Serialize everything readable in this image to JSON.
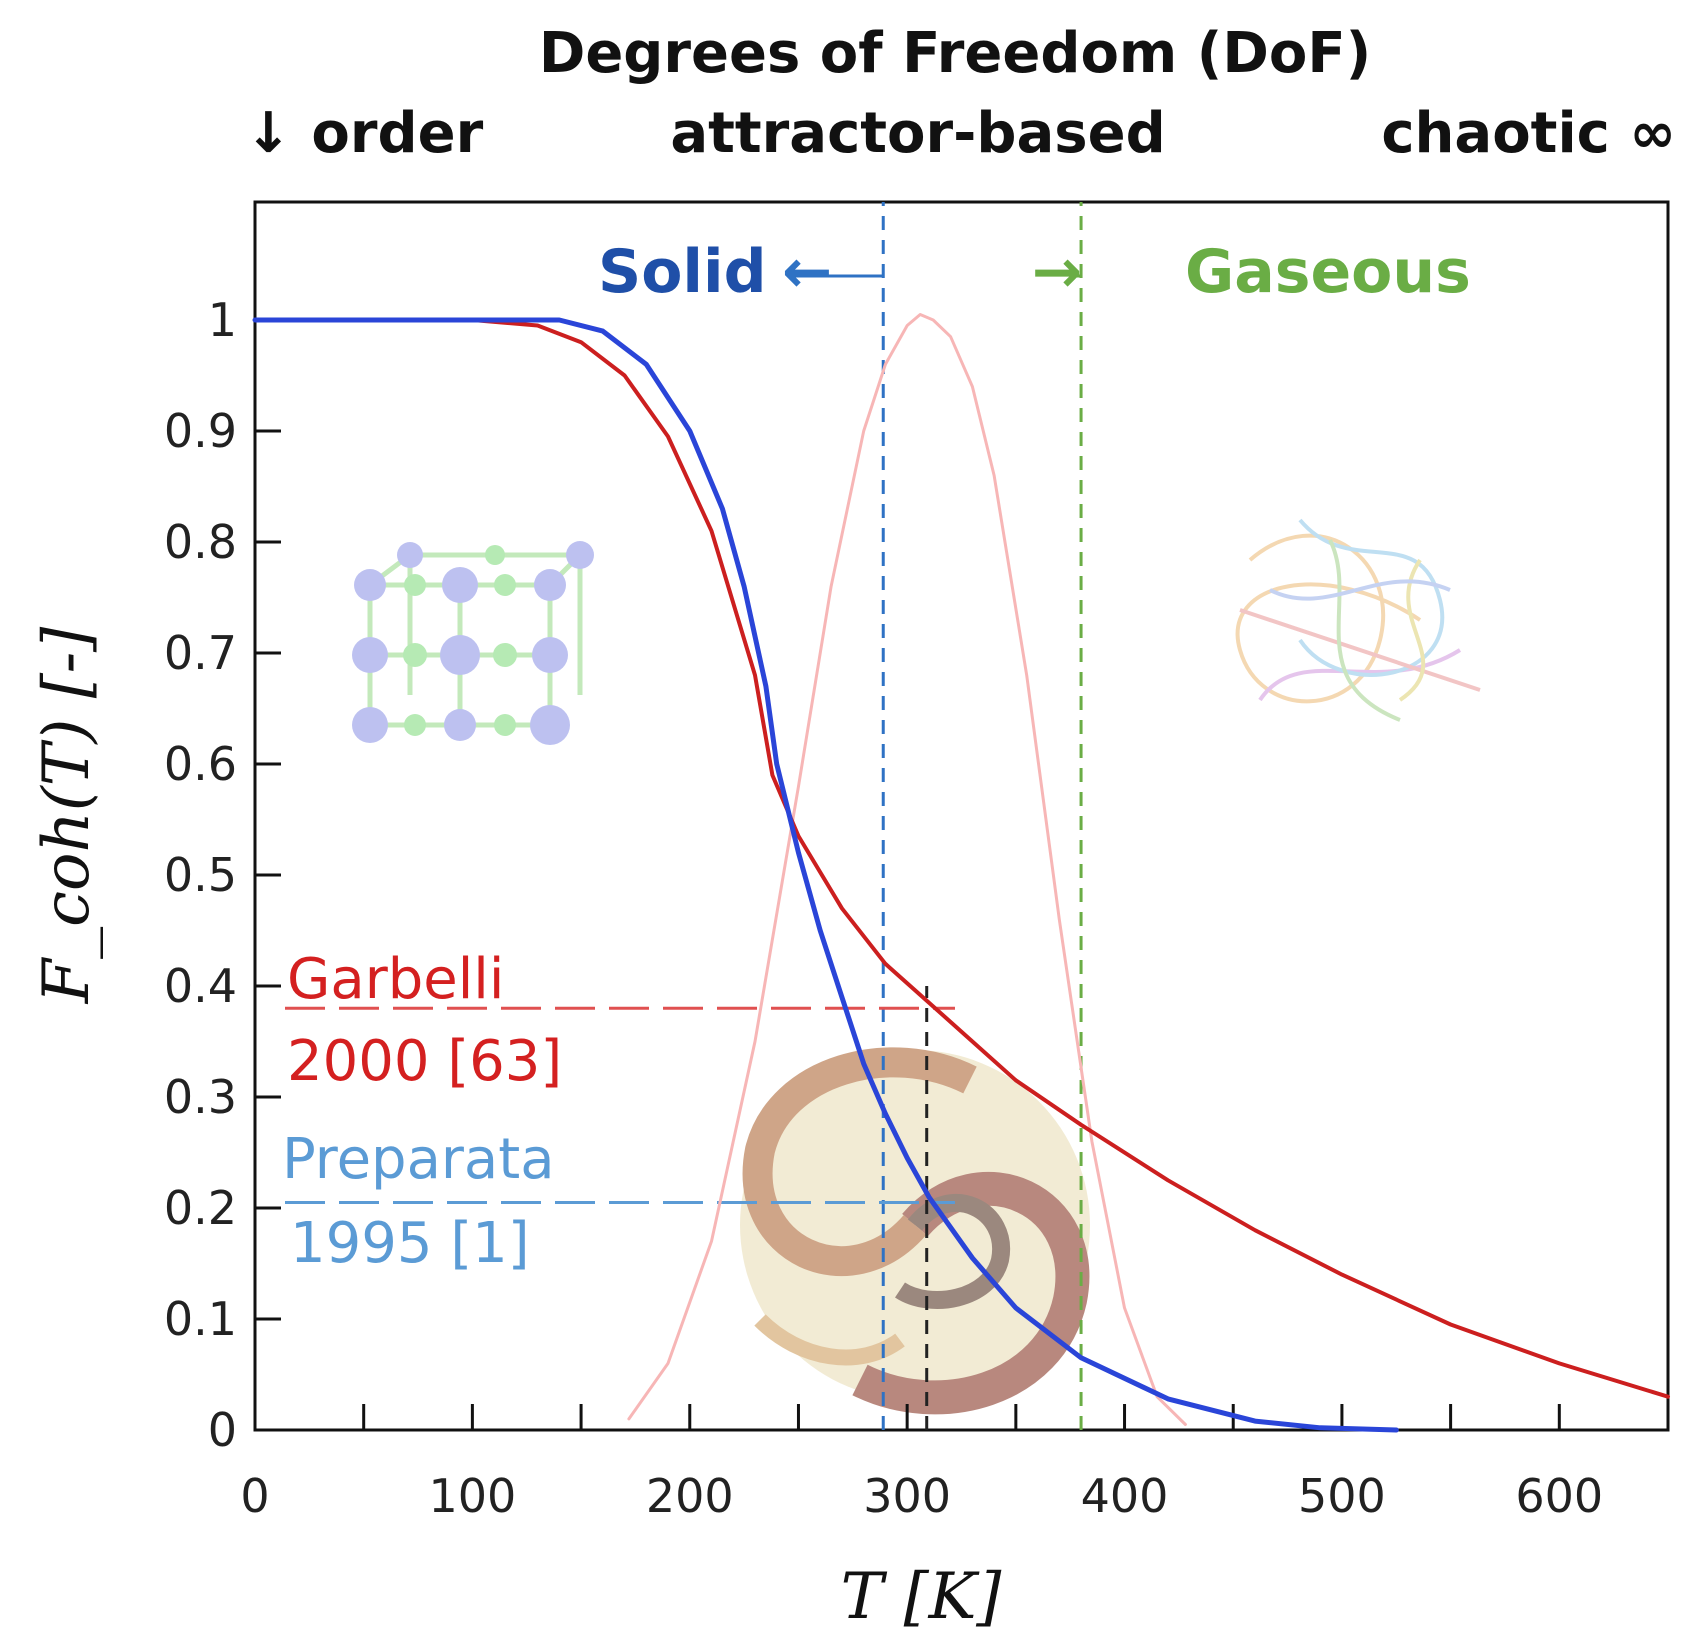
{
  "header": {
    "title": "Degrees of Freedom (DoF)",
    "left": "↓ order",
    "center": "attractor-based",
    "right": "chaotic ∞"
  },
  "annotations": {
    "solid": "Solid",
    "solid_arrow": "←",
    "gaseous": "Gaseous",
    "gaseous_arrow": "→",
    "garbelli": [
      "Garbelli",
      "2000 [63]"
    ],
    "preparata": [
      "Preparata",
      "1995 [1]"
    ]
  },
  "icons": [
    "crystal-lattice-icon",
    "chaotic-letters-icon",
    "spiral-swirl-icon"
  ],
  "chart_data": {
    "type": "line",
    "xlabel": "T [K]",
    "ylabel": "F_coh(T) [-]",
    "xlim": [
      0,
      650
    ],
    "ylim": [
      0,
      1.1
    ],
    "xticks": [
      0,
      100,
      200,
      300,
      400,
      500,
      600
    ],
    "yticks": [
      0,
      0.1,
      0.2,
      0.3,
      0.4,
      0.5,
      0.6,
      0.7,
      0.8,
      0.9,
      1
    ],
    "ytick_labels": [
      "0",
      "0.1",
      "0.2",
      "0.3",
      "0.4",
      "0.5",
      "0.6",
      "0.7",
      "0.8",
      "0.9",
      "1"
    ],
    "grid": false,
    "series": [
      {
        "color": "#cc1f1f",
        "x": [
          0,
          100,
          130,
          150,
          170,
          190,
          210,
          230,
          238,
          250,
          270,
          290,
          310,
          330,
          350,
          380,
          420,
          460,
          500,
          550,
          600,
          650
        ],
        "y": [
          1.0,
          1.0,
          0.995,
          0.98,
          0.95,
          0.895,
          0.81,
          0.68,
          0.59,
          0.535,
          0.47,
          0.42,
          0.385,
          0.35,
          0.315,
          0.275,
          0.225,
          0.18,
          0.14,
          0.095,
          0.06,
          0.03
        ]
      },
      {
        "color": "#2a45d8",
        "x": [
          0,
          140,
          160,
          180,
          200,
          215,
          225,
          235,
          240,
          250,
          260,
          270,
          280,
          290,
          300,
          310,
          330,
          350,
          380,
          420,
          460,
          490,
          525
        ],
        "y": [
          1.0,
          1.0,
          0.99,
          0.96,
          0.9,
          0.83,
          0.76,
          0.67,
          0.6,
          0.52,
          0.45,
          0.39,
          0.33,
          0.285,
          0.245,
          0.21,
          0.155,
          0.11,
          0.065,
          0.028,
          0.008,
          0.002,
          0.0
        ]
      },
      {
        "color": "#f7b6b6",
        "x": [
          172,
          190,
          210,
          230,
          250,
          265,
          280,
          290,
          300,
          306,
          312,
          320,
          330,
          340,
          355,
          370,
          385,
          400,
          415,
          428
        ],
        "y": [
          0.01,
          0.06,
          0.17,
          0.35,
          0.58,
          0.76,
          0.9,
          0.96,
          0.995,
          1.005,
          1.0,
          0.985,
          0.94,
          0.86,
          0.68,
          0.46,
          0.26,
          0.11,
          0.03,
          0.005
        ]
      }
    ],
    "vlines": [
      {
        "x": 289,
        "color": "#2f72c4"
      },
      {
        "x": 380,
        "color": "#6aad45"
      },
      {
        "x": 309,
        "ymax": 0.4,
        "color": "#222222"
      }
    ],
    "hlines": [
      {
        "y": 0.38,
        "xmax": 322,
        "color": "#e05050"
      },
      {
        "y": 0.205,
        "xmax": 322,
        "color": "#5b9bd5"
      }
    ]
  }
}
